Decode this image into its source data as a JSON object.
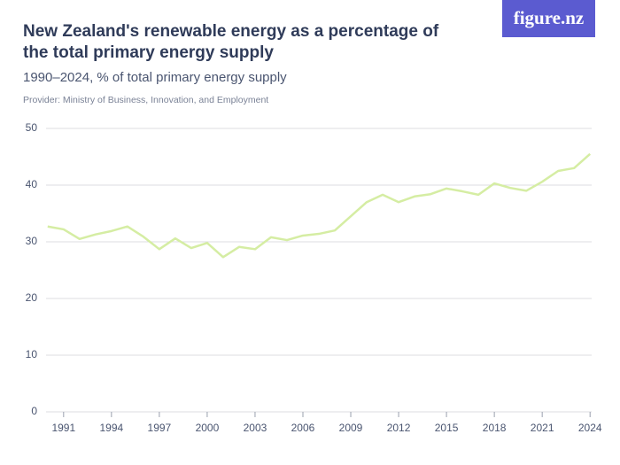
{
  "logo": "figure.nz",
  "chart_data": {
    "type": "line",
    "title": "New Zealand's renewable energy as a percentage of the total primary energy supply",
    "subtitle": "1990–2024, % of total primary energy supply",
    "provider": "Provider: Ministry of Business, Innovation, and Employment",
    "x": [
      1990,
      1991,
      1992,
      1993,
      1994,
      1995,
      1996,
      1997,
      1998,
      1999,
      2000,
      2001,
      2002,
      2003,
      2004,
      2005,
      2006,
      2007,
      2008,
      2009,
      2010,
      2011,
      2012,
      2013,
      2014,
      2015,
      2016,
      2017,
      2018,
      2019,
      2020,
      2021,
      2022,
      2023,
      2024
    ],
    "values": [
      32.7,
      32.2,
      30.5,
      31.3,
      31.9,
      32.7,
      30.9,
      28.7,
      30.6,
      28.9,
      29.8,
      27.3,
      29.1,
      28.7,
      30.8,
      30.3,
      31.1,
      31.4,
      32.0,
      34.5,
      37.0,
      38.3,
      37.0,
      38.0,
      38.4,
      39.4,
      38.9,
      38.3,
      40.3,
      39.5,
      39.0,
      40.6,
      42.5,
      43.0,
      45.5
    ],
    "color": "#d5eda3",
    "xlim": [
      1989.9,
      2024.1
    ],
    "xticks": [
      1991,
      1994,
      1997,
      2000,
      2003,
      2006,
      2009,
      2012,
      2015,
      2018,
      2021,
      2024
    ],
    "ylim": [
      0,
      50
    ],
    "yticks": [
      0,
      10,
      20,
      30,
      40,
      50
    ],
    "grid": true
  }
}
